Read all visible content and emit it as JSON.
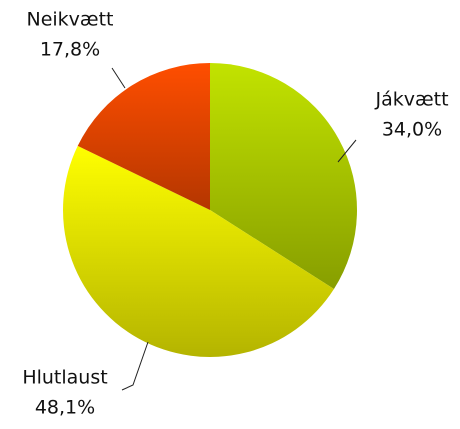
{
  "chart_data": {
    "type": "pie",
    "categories": [
      "Jákvætt",
      "Hlutlaust",
      "Neikvætt"
    ],
    "values": [
      34.0,
      48.1,
      17.8
    ],
    "value_labels": [
      "34,0%",
      "48,1%",
      "17,8%"
    ],
    "colors": [
      "#b4d200",
      "#f0f000",
      "#f04800"
    ]
  }
}
